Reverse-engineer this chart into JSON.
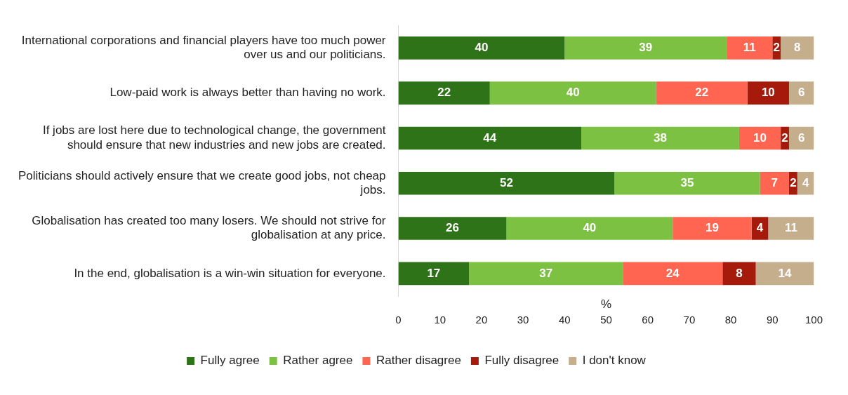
{
  "chart_data": {
    "type": "bar",
    "orientation": "horizontal",
    "stacked": true,
    "categories": [
      "International corporations and financial players have too much power over us and our politicians.",
      "Low-paid work is always better than having no work.",
      "If jobs are lost here due to technological change, the government should ensure that new industries and new jobs are created.",
      "Politicians should actively ensure that we create good jobs, not cheap jobs.",
      "Globalisation has created too many losers. We should not strive for globalisation at any price.",
      "In the end, globalisation is a win-win situation for everyone."
    ],
    "series": [
      {
        "name": "Fully agree",
        "color": "#2e7318",
        "values": [
          40,
          22,
          44,
          52,
          26,
          17
        ]
      },
      {
        "name": "Rather agree",
        "color": "#7dc142",
        "values": [
          39,
          40,
          38,
          35,
          40,
          37
        ]
      },
      {
        "name": "Rather disagree",
        "color": "#ff6550",
        "values": [
          11,
          22,
          10,
          7,
          19,
          24
        ]
      },
      {
        "name": "Fully disagree",
        "color": "#a51a0b",
        "values": [
          2,
          10,
          2,
          2,
          4,
          8
        ]
      },
      {
        "name": "I don't know",
        "color": "#c4ae8c",
        "values": [
          8,
          6,
          6,
          4,
          11,
          14
        ]
      }
    ],
    "xlabel": "%",
    "xlim": [
      0,
      100
    ],
    "xticks": [
      0,
      10,
      20,
      30,
      40,
      50,
      60,
      70,
      80,
      90,
      100
    ],
    "grid": false,
    "legend": "bottom",
    "data_labels": true
  }
}
